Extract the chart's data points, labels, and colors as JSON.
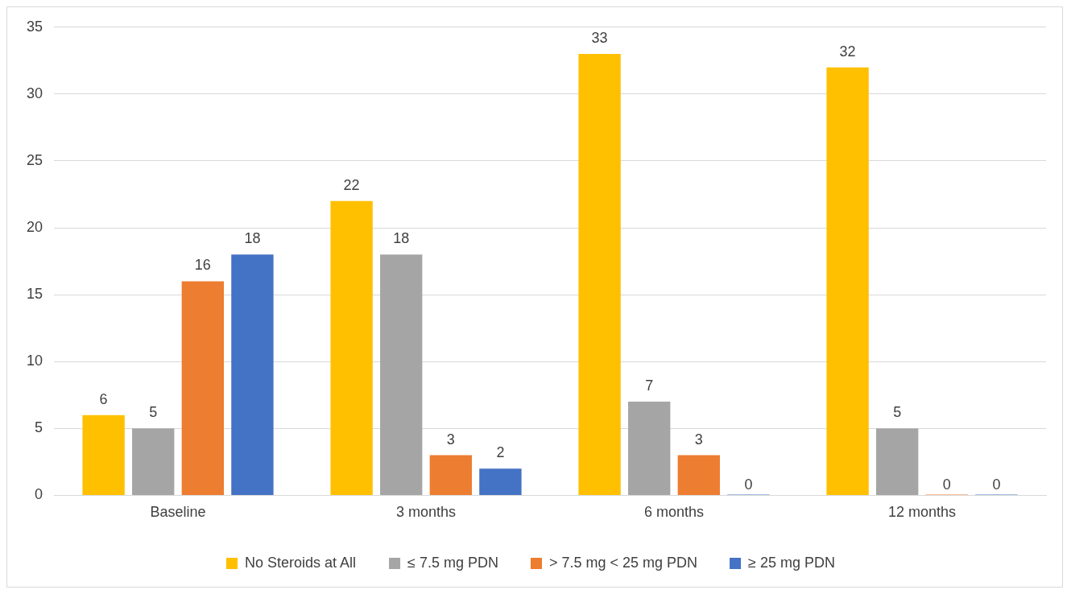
{
  "chart_data": {
    "type": "bar",
    "categories": [
      "Baseline",
      "3 months",
      "6 months",
      "12 months"
    ],
    "series": [
      {
        "name": "No Steroids at All",
        "color": "#ffc000",
        "values": [
          6,
          22,
          33,
          32
        ]
      },
      {
        "name": "≤ 7.5 mg PDN",
        "color": "#a5a5a5",
        "values": [
          5,
          18,
          7,
          5
        ]
      },
      {
        "name": "> 7.5 mg < 25 mg PDN",
        "color": "#ed7d31",
        "values": [
          16,
          3,
          3,
          0
        ]
      },
      {
        "name": "≥ 25 mg PDN",
        "color": "#4472c4",
        "values": [
          18,
          2,
          0,
          0
        ]
      }
    ],
    "ylim": [
      0,
      35
    ],
    "yticks": [
      0,
      5,
      10,
      15,
      20,
      25,
      30,
      35
    ],
    "grid": "y",
    "legend": "bottom",
    "data_labels": true
  }
}
